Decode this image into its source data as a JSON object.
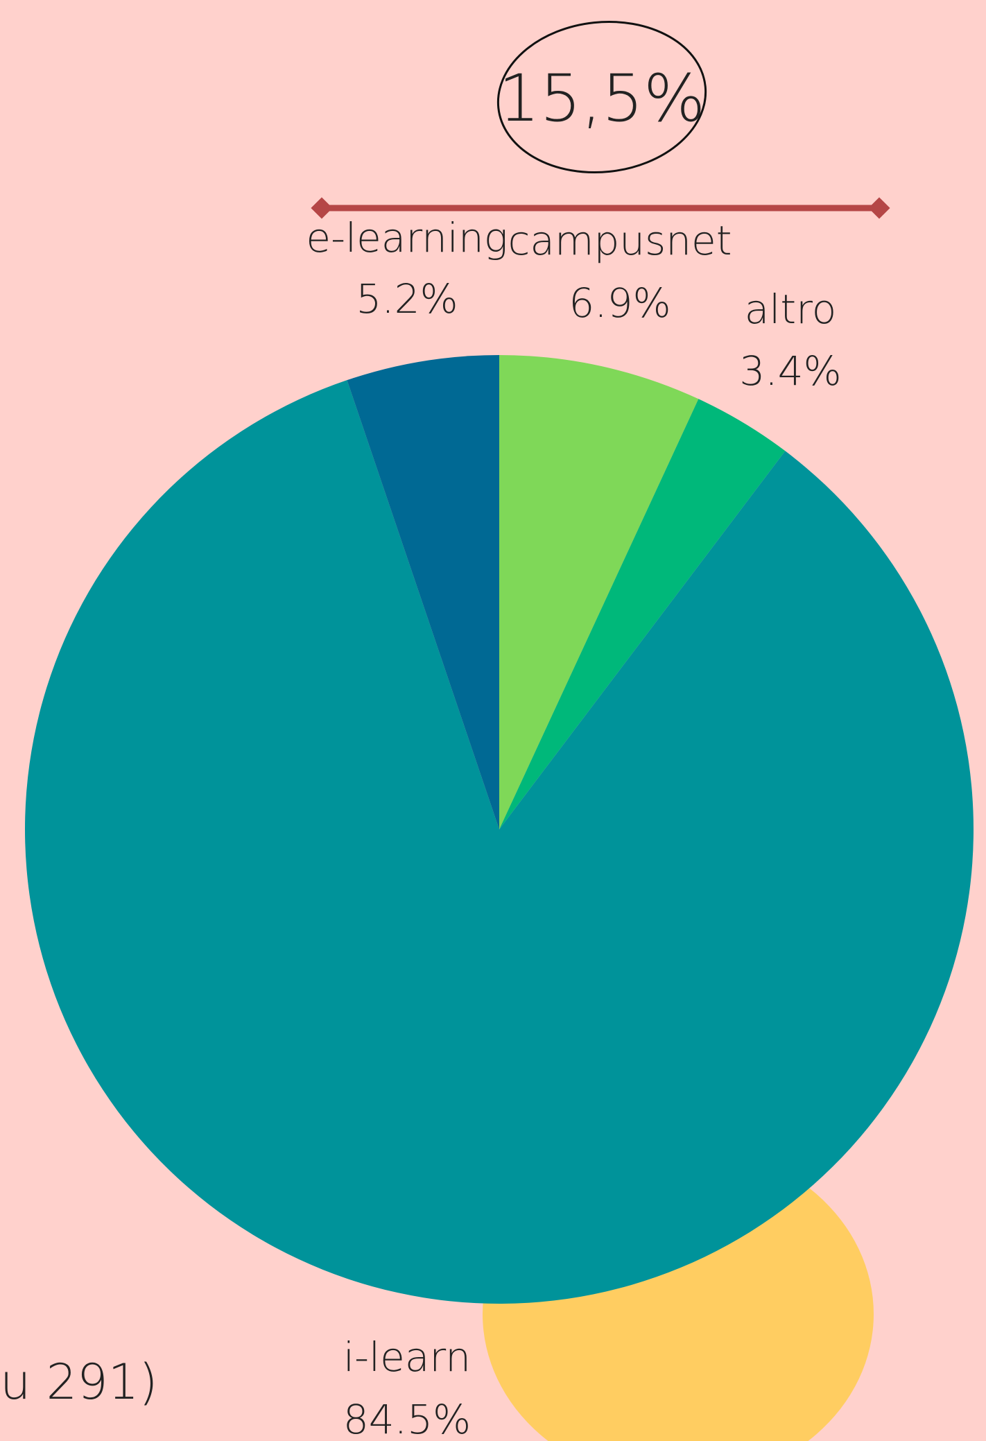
{
  "chart_data": {
    "type": "pie",
    "categories": [
      "campusnet",
      "altro",
      "i-learn",
      "e-learning"
    ],
    "values": [
      6.9,
      3.4,
      84.5,
      5.2
    ],
    "value_labels": [
      "6.9%",
      "3.4%",
      "84.5%",
      "5.2%"
    ],
    "colors": [
      "#7fd858",
      "#00b87a",
      "#00939a",
      "#006994"
    ],
    "annotations": [
      "15,5%",
      "u 291)"
    ]
  }
}
